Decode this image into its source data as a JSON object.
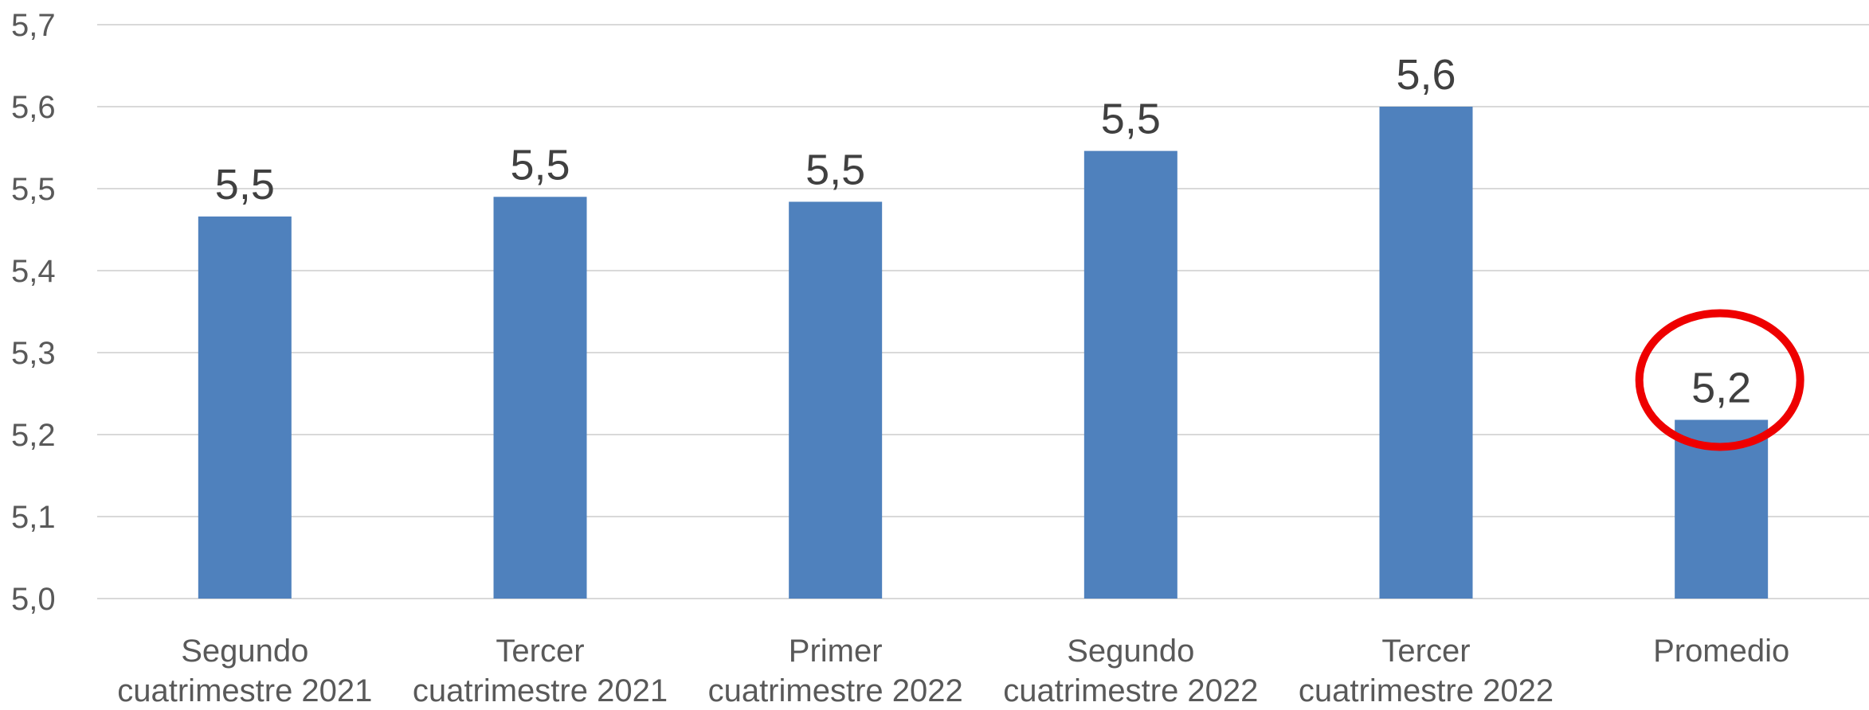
{
  "chart_data": {
    "type": "bar",
    "title": "",
    "xlabel": "",
    "ylabel": "",
    "categories": [
      [
        "Segundo",
        "cuatrimestre 2021"
      ],
      [
        "Tercer",
        "cuatrimestre 2021"
      ],
      [
        "Primer",
        "cuatrimestre 2022"
      ],
      [
        "Segundo",
        "cuatrimestre 2022"
      ],
      [
        "Tercer",
        "cuatrimestre 2022"
      ],
      [
        "Promedio"
      ]
    ],
    "values": [
      5.466,
      5.49,
      5.484,
      5.546,
      5.6,
      5.218
    ],
    "data_labels": [
      "5,5",
      "5,5",
      "5,5",
      "5,5",
      "5,6",
      "5,2"
    ],
    "ylim": [
      5.0,
      5.7
    ],
    "yticks": [
      "5,0",
      "5,1",
      "5,2",
      "5,3",
      "5,4",
      "5,5",
      "5,6",
      "5,7"
    ],
    "grid": true,
    "legend": "none",
    "bar_color": "#4f81bd",
    "highlight": {
      "category_index": 5,
      "shape": "ellipse",
      "color": "#ee0000"
    }
  }
}
